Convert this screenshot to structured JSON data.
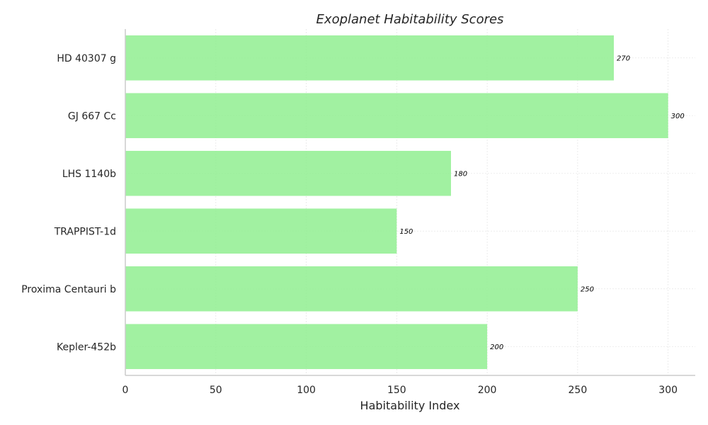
{
  "chart_data": {
    "type": "bar",
    "orientation": "horizontal",
    "title": "Exoplanet Habitability Scores",
    "xlabel": "Habitability Index",
    "ylabel": "",
    "categories": [
      "HD 40307 g",
      "GJ 667 Cc",
      "LHS 1140b",
      "TRAPPIST-1d",
      "Proxima Centauri b",
      "Kepler-452b"
    ],
    "values": [
      270,
      300,
      180,
      150,
      250,
      200
    ],
    "data_labels": [
      "270",
      "300",
      "180",
      "150",
      "250",
      "200"
    ],
    "xlim": [
      0,
      315
    ],
    "xticks": [
      0,
      50,
      100,
      150,
      200,
      250,
      300
    ],
    "xtick_labels": [
      "0",
      "50",
      "100",
      "150",
      "200",
      "250",
      "300"
    ],
    "grid": true,
    "bar_color": "#90ee90"
  }
}
